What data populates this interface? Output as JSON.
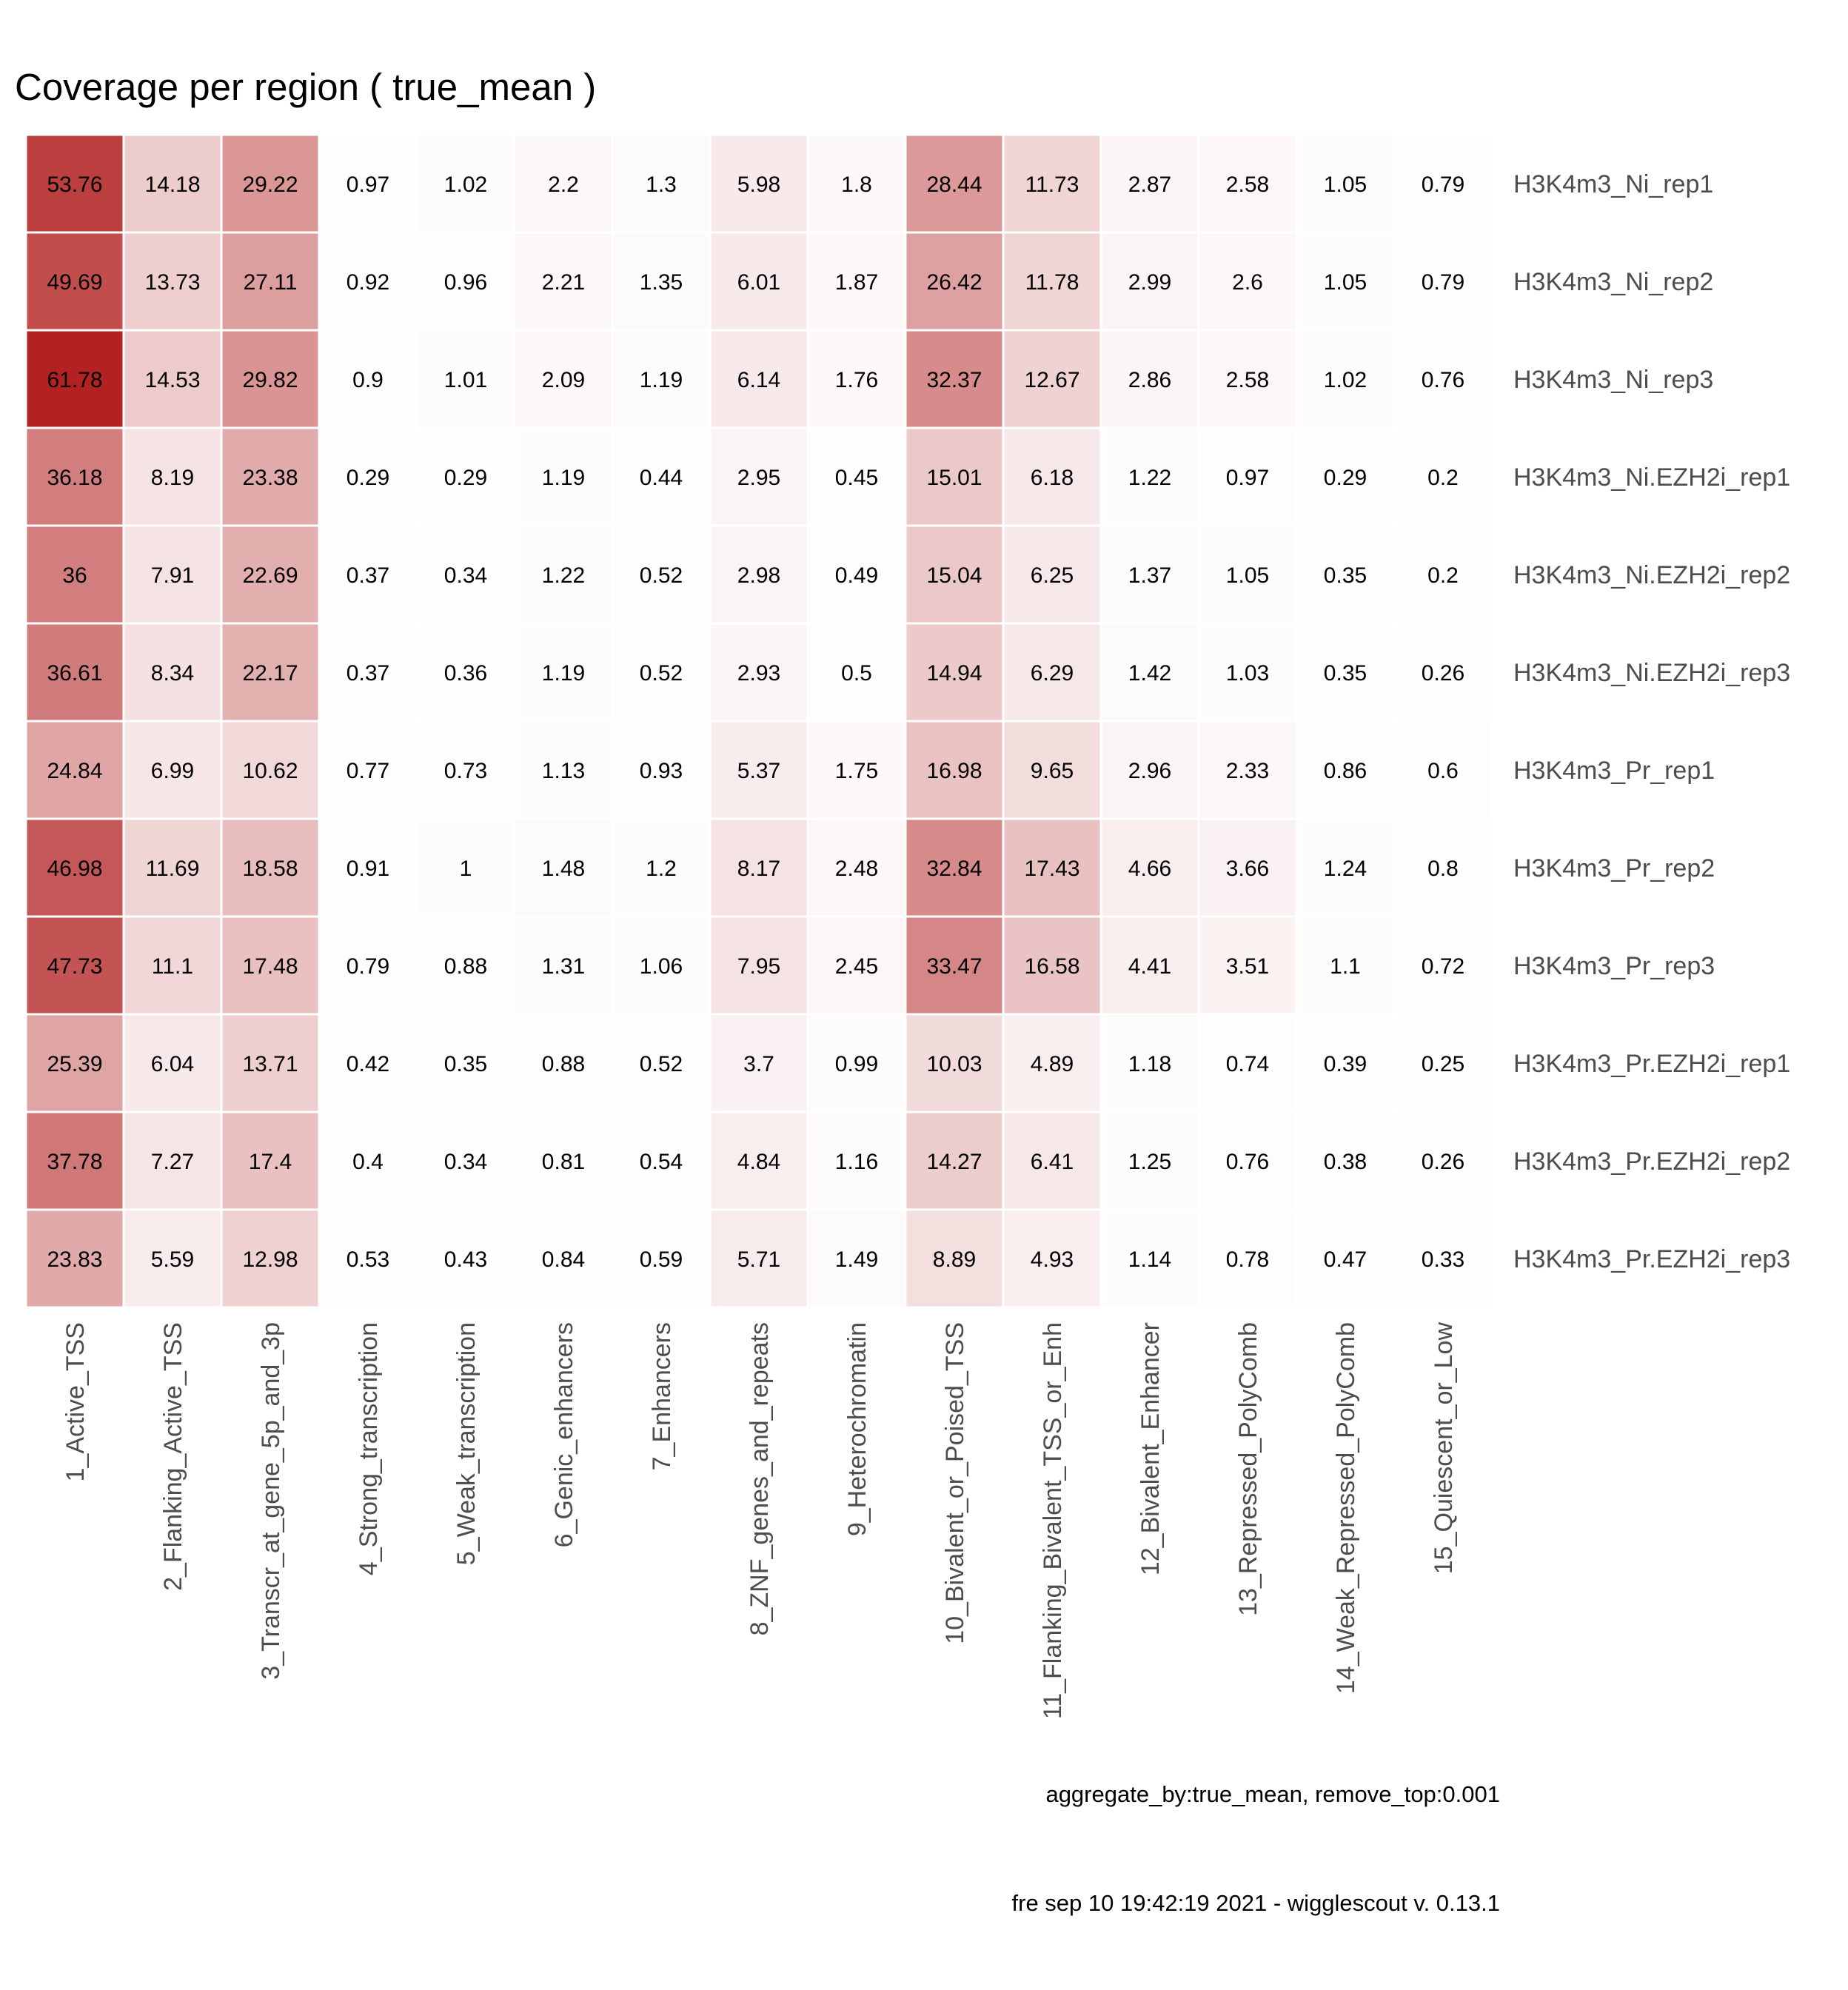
{
  "chart_data": {
    "type": "heatmap",
    "title": "Coverage per region ( true_mean )",
    "columns": [
      "1_Active_TSS",
      "2_Flanking_Active_TSS",
      "3_Transcr_at_gene_5p_and_3p",
      "4_Strong_transcription",
      "5_Weak_transcription",
      "6_Genic_enhancers",
      "7_Enhancers",
      "8_ZNF_genes_and_repeats",
      "9_Heterochromatin",
      "10_Bivalent_or_Poised_TSS",
      "11_Flanking_Bivalent_TSS_or_Enh",
      "12_Bivalent_Enhancer",
      "13_Repressed_PolyComb",
      "14_Weak_Repressed_PolyComb",
      "15_Quiescent_or_Low"
    ],
    "rows": [
      "H3K4m3_Ni_rep1",
      "H3K4m3_Ni_rep2",
      "H3K4m3_Ni_rep3",
      "H3K4m3_Ni.EZH2i_rep1",
      "H3K4m3_Ni.EZH2i_rep2",
      "H3K4m3_Ni.EZH2i_rep3",
      "H3K4m3_Pr_rep1",
      "H3K4m3_Pr_rep2",
      "H3K4m3_Pr_rep3",
      "H3K4m3_Pr.EZH2i_rep1",
      "H3K4m3_Pr.EZH2i_rep2",
      "H3K4m3_Pr.EZH2i_rep3"
    ],
    "values": [
      [
        "53.76",
        "14.18",
        "29.22",
        "0.97",
        "1.02",
        "2.2",
        "1.3",
        "5.98",
        "1.8",
        "28.44",
        "11.73",
        "2.87",
        "2.58",
        "1.05",
        "0.79"
      ],
      [
        "49.69",
        "13.73",
        "27.11",
        "0.92",
        "0.96",
        "2.21",
        "1.35",
        "6.01",
        "1.87",
        "26.42",
        "11.78",
        "2.99",
        "2.6",
        "1.05",
        "0.79"
      ],
      [
        "61.78",
        "14.53",
        "29.82",
        "0.9",
        "1.01",
        "2.09",
        "1.19",
        "6.14",
        "1.76",
        "32.37",
        "12.67",
        "2.86",
        "2.58",
        "1.02",
        "0.76"
      ],
      [
        "36.18",
        "8.19",
        "23.38",
        "0.29",
        "0.29",
        "1.19",
        "0.44",
        "2.95",
        "0.45",
        "15.01",
        "6.18",
        "1.22",
        "0.97",
        "0.29",
        "0.2"
      ],
      [
        "36",
        "7.91",
        "22.69",
        "0.37",
        "0.34",
        "1.22",
        "0.52",
        "2.98",
        "0.49",
        "15.04",
        "6.25",
        "1.37",
        "1.05",
        "0.35",
        "0.2"
      ],
      [
        "36.61",
        "8.34",
        "22.17",
        "0.37",
        "0.36",
        "1.19",
        "0.52",
        "2.93",
        "0.5",
        "14.94",
        "6.29",
        "1.42",
        "1.03",
        "0.35",
        "0.26"
      ],
      [
        "24.84",
        "6.99",
        "10.62",
        "0.77",
        "0.73",
        "1.13",
        "0.93",
        "5.37",
        "1.75",
        "16.98",
        "9.65",
        "2.96",
        "2.33",
        "0.86",
        "0.6"
      ],
      [
        "46.98",
        "11.69",
        "18.58",
        "0.91",
        "1",
        "1.48",
        "1.2",
        "8.17",
        "2.48",
        "32.84",
        "17.43",
        "4.66",
        "3.66",
        "1.24",
        "0.8"
      ],
      [
        "47.73",
        "11.1",
        "17.48",
        "0.79",
        "0.88",
        "1.31",
        "1.06",
        "7.95",
        "2.45",
        "33.47",
        "16.58",
        "4.41",
        "3.51",
        "1.1",
        "0.72"
      ],
      [
        "25.39",
        "6.04",
        "13.71",
        "0.42",
        "0.35",
        "0.88",
        "0.52",
        "3.7",
        "0.99",
        "10.03",
        "4.89",
        "1.18",
        "0.74",
        "0.39",
        "0.25"
      ],
      [
        "37.78",
        "7.27",
        "17.4",
        "0.4",
        "0.34",
        "0.81",
        "0.54",
        "4.84",
        "1.16",
        "14.27",
        "6.41",
        "1.25",
        "0.76",
        "0.38",
        "0.26"
      ],
      [
        "23.83",
        "5.59",
        "12.98",
        "0.53",
        "0.43",
        "0.84",
        "0.59",
        "5.71",
        "1.49",
        "8.89",
        "4.93",
        "1.14",
        "0.78",
        "0.47",
        "0.33"
      ]
    ],
    "color_scale": {
      "low": "#ffffff",
      "high": "#b22222",
      "min": 0,
      "max": 61.78
    }
  },
  "caption_params": "aggregate_by:true_mean, remove_top:0.001",
  "caption_footer": "fre sep 10 19:42:19 2021 - wigglescout v. 0.13.1"
}
